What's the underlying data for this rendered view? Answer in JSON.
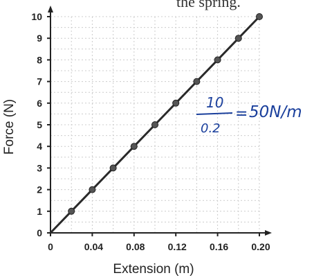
{
  "top_text": "the spring.",
  "annotation": {
    "numerator": "10",
    "denominator": "0.2",
    "equals": "=",
    "result": "50N/m"
  },
  "chart_data": {
    "type": "line",
    "title": "",
    "xlabel": "Extension (m)",
    "ylabel": "Force (N)",
    "xlim": [
      0,
      0.2
    ],
    "ylim": [
      0,
      10
    ],
    "xticks": [
      0,
      0.04,
      0.08,
      0.12,
      0.16,
      0.2
    ],
    "xtick_labels": [
      "0",
      "0.04",
      "0.08",
      "0.12",
      "0.16",
      "0.20"
    ],
    "yticks": [
      0,
      1,
      2,
      3,
      4,
      5,
      6,
      7,
      8,
      9,
      10
    ],
    "ytick_labels": [
      "0",
      "1",
      "2",
      "3",
      "4",
      "5",
      "6",
      "7",
      "8",
      "9",
      "10"
    ],
    "grid": true,
    "x": [
      0,
      0.02,
      0.04,
      0.06,
      0.08,
      0.1,
      0.12,
      0.14,
      0.16,
      0.18,
      0.2
    ],
    "y": [
      0,
      1,
      2,
      3,
      4,
      5,
      6,
      7,
      8,
      9,
      10
    ],
    "colors": {
      "line": "#2a2a2a",
      "marker": "#555555",
      "grid": "#cccccc",
      "annotation": "#1a3f9c"
    }
  }
}
